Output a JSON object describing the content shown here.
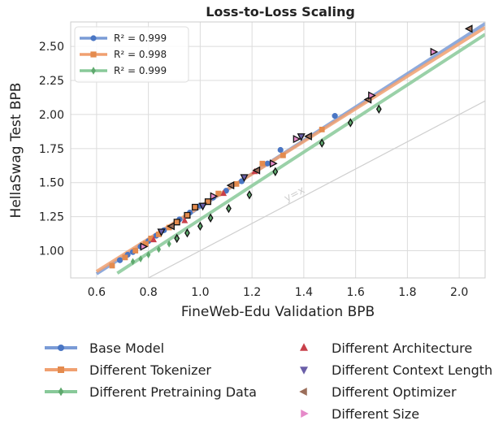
{
  "chart_data": {
    "type": "scatter",
    "title": "Loss-to-Loss Scaling",
    "xlabel": "FineWeb-Edu Validation BPB",
    "ylabel": "HellaSwag Test BPB",
    "xlim": [
      0.5,
      2.1
    ],
    "ylim": [
      0.8,
      2.68
    ],
    "x_ticks": [
      "0.6",
      "0.8",
      "1.0",
      "1.2",
      "1.4",
      "1.6",
      "1.8",
      "2.0"
    ],
    "x_tick_values": [
      0.6,
      0.8,
      1.0,
      1.2,
      1.4,
      1.6,
      1.8,
      2.0
    ],
    "y_ticks": [
      "1.00",
      "1.25",
      "1.50",
      "1.75",
      "2.00",
      "2.25",
      "2.50"
    ],
    "y_tick_values": [
      1.0,
      1.25,
      1.5,
      1.75,
      2.0,
      2.25,
      2.5
    ],
    "grid": true,
    "reference_line": {
      "label": "y=x",
      "slope": 1,
      "intercept": 0
    },
    "fit_lines": [
      {
        "r2_label": "R² = 0.999",
        "color": "#7a9bd6",
        "marker": "circle",
        "x_range": [
          0.6,
          2.1
        ],
        "slope": 1.225,
        "intercept": 0.095
      },
      {
        "r2_label": "R² = 0.998",
        "color": "#f0a070",
        "marker": "square",
        "x_range": [
          0.6,
          2.1
        ],
        "slope": 1.195,
        "intercept": 0.13
      },
      {
        "r2_label": "R² = 0.999",
        "color": "#88c999",
        "marker": "diamond",
        "x_range": [
          0.68,
          2.1
        ],
        "slope": 1.235,
        "intercept": -0.005
      }
    ],
    "series": [
      {
        "name": "Base Model",
        "marker": "circle",
        "color": "#4a76c4",
        "points": [
          [
            0.69,
            0.93
          ],
          [
            0.72,
            0.97
          ],
          [
            0.74,
            0.99
          ],
          [
            0.77,
            1.03
          ],
          [
            0.8,
            1.07
          ],
          [
            0.83,
            1.11
          ],
          [
            0.86,
            1.15
          ],
          [
            0.92,
            1.23
          ],
          [
            0.96,
            1.28
          ],
          [
            1.0,
            1.33
          ],
          [
            1.05,
            1.39
          ],
          [
            1.1,
            1.44
          ],
          [
            1.16,
            1.51
          ],
          [
            1.26,
            1.64
          ],
          [
            1.31,
            1.74
          ],
          [
            1.52,
            1.99
          ]
        ]
      },
      {
        "name": "Different Tokenizer",
        "marker": "square",
        "color": "#e48b4e",
        "points": [
          [
            0.66,
            0.89
          ],
          [
            0.71,
            0.95
          ],
          [
            0.75,
            1.0
          ],
          [
            0.79,
            1.05
          ],
          [
            0.81,
            1.09
          ],
          [
            0.84,
            1.12
          ],
          [
            0.88,
            1.17
          ],
          [
            0.91,
            1.21
          ],
          [
            0.95,
            1.26
          ],
          [
            0.98,
            1.32
          ],
          [
            1.03,
            1.36
          ],
          [
            1.07,
            1.42
          ],
          [
            1.14,
            1.49
          ],
          [
            1.24,
            1.64
          ],
          [
            1.32,
            1.7
          ],
          [
            1.47,
            1.89
          ]
        ]
      },
      {
        "name": "Different Pretraining Data",
        "marker": "diamond",
        "color": "#5fa96e",
        "points": [
          [
            0.74,
            0.92
          ],
          [
            0.77,
            0.94
          ],
          [
            0.8,
            0.97
          ],
          [
            0.84,
            1.01
          ],
          [
            0.88,
            1.05
          ],
          [
            0.91,
            1.09
          ],
          [
            0.95,
            1.13
          ],
          [
            1.0,
            1.18
          ],
          [
            1.04,
            1.24
          ],
          [
            1.11,
            1.31
          ],
          [
            1.19,
            1.41
          ],
          [
            1.29,
            1.58
          ],
          [
            1.47,
            1.79
          ],
          [
            1.58,
            1.94
          ],
          [
            1.69,
            2.04
          ]
        ]
      },
      {
        "name": "Different Architecture",
        "marker": "triangle-up",
        "color": "#c8404a",
        "points": [
          [
            0.82,
            1.08
          ],
          [
            0.94,
            1.22
          ],
          [
            1.09,
            1.42
          ],
          [
            1.21,
            1.58
          ]
        ]
      },
      {
        "name": "Different Context Length",
        "marker": "triangle-down",
        "color": "#6a5fa8",
        "points": [
          [
            0.85,
            1.14
          ],
          [
            1.01,
            1.33
          ],
          [
            1.17,
            1.54
          ],
          [
            1.39,
            1.84
          ]
        ]
      },
      {
        "name": "Different Optimizer",
        "marker": "triangle-left",
        "color": "#9b6e5a",
        "points": [
          [
            0.89,
            1.18
          ],
          [
            1.12,
            1.48
          ],
          [
            1.22,
            1.59
          ],
          [
            1.42,
            1.84
          ],
          [
            1.65,
            2.11
          ],
          [
            2.04,
            2.63
          ]
        ]
      },
      {
        "name": "Different Size",
        "marker": "triangle-right",
        "color": "#e58ac9",
        "points": [
          [
            0.78,
            1.03
          ],
          [
            1.05,
            1.4
          ],
          [
            1.28,
            1.64
          ],
          [
            1.37,
            1.82
          ],
          [
            1.66,
            2.14
          ],
          [
            1.9,
            2.46
          ]
        ]
      }
    ],
    "legend_outer": [
      {
        "label": "Base Model",
        "style": "line-circle",
        "color": "#7a9bd6",
        "marker_color": "#4a76c4"
      },
      {
        "label": "Different Tokenizer",
        "style": "line-square",
        "color": "#f0a070",
        "marker_color": "#e48b4e"
      },
      {
        "label": "Different Pretraining Data",
        "style": "line-diamond",
        "color": "#88c999",
        "marker_color": "#5fa96e"
      },
      {
        "label": "Different Architecture",
        "style": "triangle-up",
        "color": "#c8404a"
      },
      {
        "label": "Different Context Length",
        "style": "triangle-down",
        "color": "#6a5fa8"
      },
      {
        "label": "Different Optimizer",
        "style": "triangle-left",
        "color": "#9b6e5a"
      },
      {
        "label": "Different Size",
        "style": "triangle-right",
        "color": "#e58ac9"
      }
    ]
  }
}
